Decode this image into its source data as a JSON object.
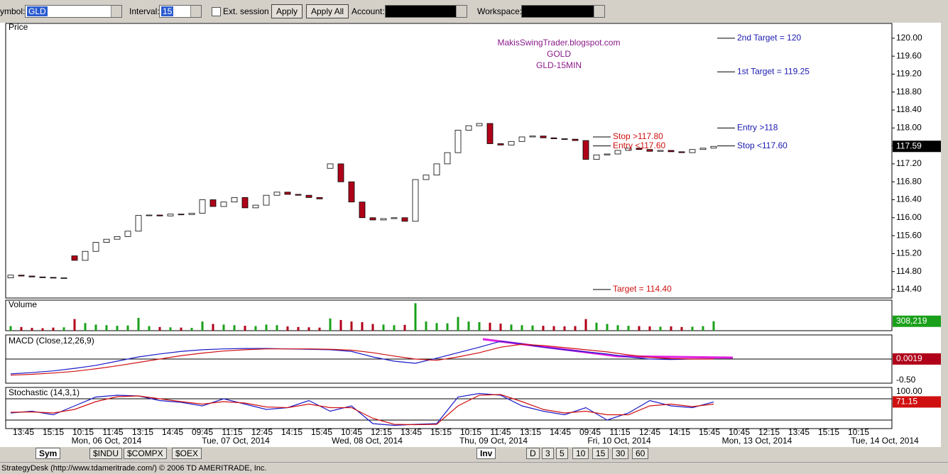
{
  "toolbar": {
    "symbol_label": "ymbol:",
    "symbol": "GLD",
    "interval_label": "Interval:",
    "interval": "15",
    "ext_session": "Ext. session",
    "apply": "Apply",
    "apply_all": "Apply All",
    "account_label": "Account:",
    "workspace_label": "Workspace:"
  },
  "chart_data": {
    "type": "candlestick",
    "title": "Price",
    "watermark": [
      "MakisSwingTrader.blogspot.com",
      "GOLD",
      "GLD-15MIN"
    ],
    "x_labels": [
      "13:45",
      "15:15",
      "10:15",
      "11:45",
      "13:15",
      "14:45",
      "09:45",
      "11:15",
      "12:45",
      "14:15",
      "15:45",
      "10:45",
      "12:15",
      "13:45",
      "15:15",
      "10:15",
      "11:45",
      "13:15",
      "14:45",
      "09:45",
      "11:15",
      "12:45",
      "14:15",
      "15:45",
      "10:45",
      "12:15",
      "13:45",
      "15:15",
      "10:15"
    ],
    "date_labels": [
      "Mon, 06 Oct, 2014",
      "Tue, 07 Oct, 2014",
      "Wed, 08 Oct, 2014",
      "Thu, 09 Oct, 2014",
      "Fri, 10 Oct, 2014",
      "Mon, 13 Oct, 2014",
      "Tue, 14 Oct, 2014"
    ],
    "open": [
      114.66,
      114.72,
      114.7,
      114.68,
      114.67,
      114.66,
      115.15,
      115.05,
      115.25,
      115.45,
      115.52,
      115.58,
      115.7,
      116.05,
      116.06,
      116.04,
      116.08,
      116.07,
      116.1,
      116.4,
      116.25,
      116.35,
      116.45,
      116.22,
      116.28,
      116.5,
      116.57,
      116.52,
      116.5,
      116.45,
      117.1,
      117.2,
      116.8,
      116.35,
      116.0,
      115.95,
      115.98,
      116.0,
      115.92,
      116.85,
      116.95,
      117.2,
      117.45,
      117.95,
      118.05,
      118.1,
      117.65,
      117.62,
      117.7,
      117.8,
      117.82,
      117.78,
      117.76,
      117.75,
      117.72,
      117.3,
      117.4,
      117.42,
      117.5,
      117.55,
      117.52,
      117.48,
      117.5,
      117.47,
      117.45,
      117.52,
      117.55
    ],
    "close": [
      114.72,
      114.7,
      114.68,
      114.67,
      114.66,
      114.66,
      115.05,
      115.25,
      115.45,
      115.52,
      115.58,
      115.7,
      116.05,
      116.06,
      116.04,
      116.08,
      116.07,
      116.1,
      116.4,
      116.25,
      116.35,
      116.45,
      116.22,
      116.28,
      116.5,
      116.57,
      116.52,
      116.5,
      116.45,
      116.42,
      117.2,
      116.8,
      116.35,
      116.0,
      115.95,
      115.98,
      116.0,
      115.92,
      116.85,
      116.95,
      117.2,
      117.45,
      117.95,
      118.05,
      118.1,
      117.65,
      117.62,
      117.7,
      117.8,
      117.82,
      117.78,
      117.76,
      117.75,
      117.72,
      117.3,
      117.4,
      117.42,
      117.5,
      117.55,
      117.52,
      117.48,
      117.5,
      117.47,
      117.45,
      117.52,
      117.55,
      117.59
    ],
    "up_color": "#ffffff",
    "down_color": "#b0001a",
    "ylim": [
      114.21,
      120.33
    ],
    "yticks": [
      {
        "value": 114.4,
        "label": "114.40"
      },
      {
        "value": 114.8,
        "label": "114.80"
      },
      {
        "value": 115.2,
        "label": "115.20"
      },
      {
        "value": 115.6,
        "label": "115.60"
      },
      {
        "value": 116,
        "label": "116.00"
      },
      {
        "value": 116.4,
        "label": "116.40"
      },
      {
        "value": 116.8,
        "label": "116.80"
      },
      {
        "value": 117.2,
        "label": "117.20"
      },
      {
        "value": 117.6,
        "label": "117.60"
      },
      {
        "value": 118,
        "label": "118.00"
      },
      {
        "value": 118.4,
        "label": "118.40"
      },
      {
        "value": 118.8,
        "label": "118.80"
      },
      {
        "value": 119.2,
        "label": "119.20"
      },
      {
        "value": 119.6,
        "label": "119.60"
      },
      {
        "value": 120,
        "label": "120.00"
      }
    ],
    "last_price": 117.59,
    "annotations": [
      {
        "text": "2nd Target = 120",
        "level": 120,
        "color": "#1a1ab0"
      },
      {
        "text": "1st Target = 119.25",
        "level": 119.25,
        "color": "#1a1ab0"
      },
      {
        "text": "Entry >118",
        "level": 118,
        "color": "#1a1ab0"
      },
      {
        "text": "Stop <117.60",
        "level": 117.6,
        "color": "#1a1ab0"
      },
      {
        "text": "Stop >117.80",
        "level": 117.8,
        "color": "#d01010"
      },
      {
        "text": "Entry <117.60",
        "level": 117.6,
        "color": "#d01010"
      },
      {
        "text": "Target = 114.40",
        "level": 114.4,
        "color": "#d01010"
      }
    ],
    "volume": {
      "title": "Volume",
      "values": [
        150000,
        120000,
        90000,
        80000,
        100000,
        110000,
        380000,
        250000,
        200000,
        180000,
        160000,
        170000,
        420000,
        150000,
        120000,
        110000,
        100000,
        90000,
        300000,
        220000,
        200000,
        180000,
        160000,
        150000,
        200000,
        180000,
        140000,
        120000,
        110000,
        100000,
        400000,
        350000,
        300000,
        280000,
        220000,
        200000,
        180000,
        190000,
        900000,
        300000,
        250000,
        240000,
        450000,
        300000,
        280000,
        260000,
        230000,
        200000,
        180000,
        170000,
        160000,
        150000,
        140000,
        150000,
        380000,
        260000,
        220000,
        180000,
        160000,
        150000,
        140000,
        130000,
        140000,
        120000,
        130000,
        150000,
        308219
      ],
      "ylim": [
        0,
        1000000
      ],
      "last": {
        "value": 308219,
        "label": "308,219"
      }
    },
    "macd": {
      "title": "MACD (Close,12,26,9)",
      "macd": [
        -0.35,
        -0.32,
        -0.28,
        -0.22,
        -0.15,
        -0.05,
        0.05,
        0.12,
        0.18,
        0.22,
        0.24,
        0.25,
        0.25,
        0.24,
        0.23,
        0.22,
        0.18,
        0.05,
        -0.05,
        -0.1,
        0.02,
        0.15,
        0.28,
        0.42,
        0.36,
        0.28,
        0.22,
        0.17,
        0.12,
        0.05,
        0.0,
        -0.01,
        0.0,
        0.0019
      ],
      "signal": [
        -0.38,
        -0.36,
        -0.33,
        -0.29,
        -0.23,
        -0.16,
        -0.08,
        0.0,
        0.08,
        0.14,
        0.19,
        0.22,
        0.24,
        0.24,
        0.24,
        0.23,
        0.21,
        0.15,
        0.07,
        0.0,
        -0.03,
        0.05,
        0.15,
        0.28,
        0.35,
        0.32,
        0.27,
        0.22,
        0.17,
        0.1,
        0.04,
        0.01,
        0.0,
        0.0
      ],
      "ylim": [
        -0.57,
        0.57
      ],
      "yticks": [
        {
          "value": -0.5,
          "label": "-0.50"
        }
      ],
      "last": 0.0019
    },
    "stochastic": {
      "title": "Stochastic (14,3,1)",
      "k": [
        40,
        45,
        35,
        60,
        85,
        90,
        88,
        75,
        70,
        60,
        80,
        65,
        50,
        55,
        75,
        45,
        60,
        10,
        5,
        8,
        10,
        85,
        95,
        90,
        60,
        45,
        35,
        55,
        20,
        40,
        75,
        60,
        55,
        71.15
      ],
      "d": [
        42,
        43,
        40,
        50,
        72,
        86,
        88,
        80,
        72,
        65,
        72,
        68,
        57,
        55,
        65,
        55,
        55,
        25,
        8,
        7,
        8,
        60,
        90,
        92,
        72,
        50,
        40,
        45,
        35,
        35,
        60,
        65,
        58,
        65
      ],
      "ylim": [
        0,
        100
      ],
      "yticks": [
        {
          "value": 100,
          "label": "100.00"
        }
      ],
      "levels": [
        20,
        80
      ],
      "last": 71.15
    }
  },
  "tabs": {
    "left": [
      "Sym",
      "$INDU",
      "$COMPX",
      "$OEX"
    ],
    "right": [
      "Inv",
      "D",
      "3",
      "5",
      "10",
      "15",
      "30",
      "60"
    ]
  },
  "status": "StrategyDesk (http://www.tdameritrade.com/) © 2006 TD AMERITRADE, Inc."
}
